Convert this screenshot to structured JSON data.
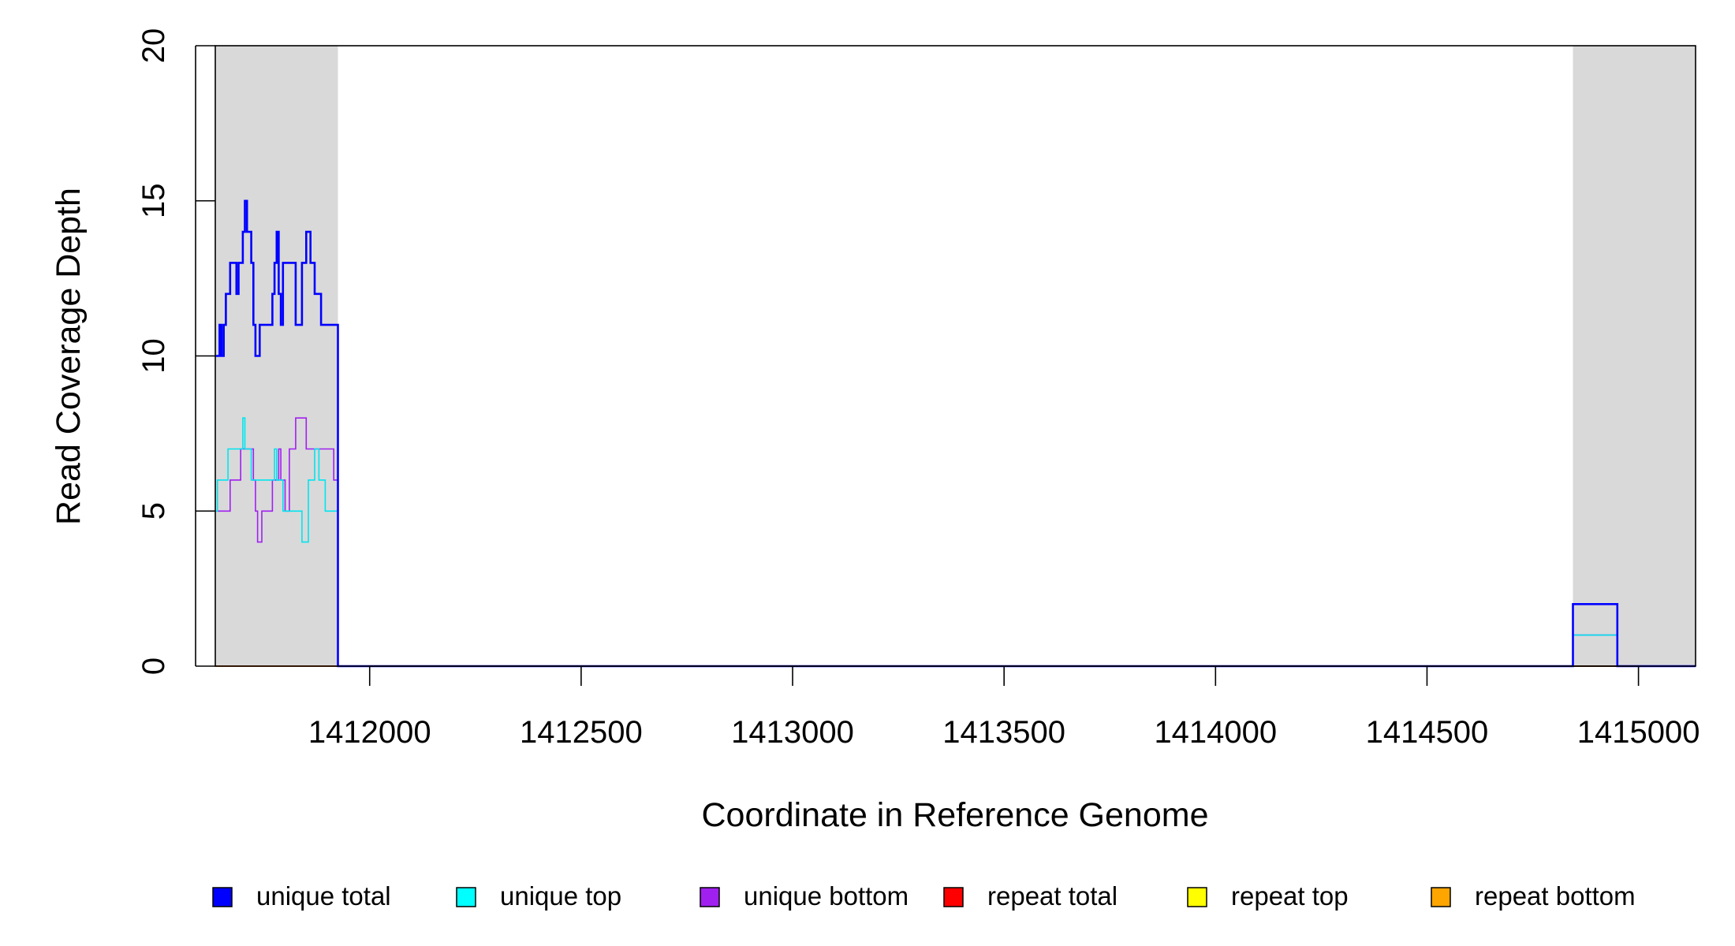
{
  "chart_data": {
    "type": "line",
    "title": "",
    "xlabel": "Coordinate in Reference Genome",
    "ylabel": "Read Coverage Depth",
    "xlim": [
      1411635,
      1415135
    ],
    "ylim": [
      0,
      20
    ],
    "x_ticks": [
      1412000,
      1412500,
      1413000,
      1413500,
      1414000,
      1414500,
      1415000
    ],
    "x_tick_labels": [
      "1412000",
      "1412500",
      "1413000",
      "1413500",
      "1414000",
      "1414500",
      "1415000"
    ],
    "y_ticks": [
      0,
      5,
      10,
      15,
      20
    ],
    "y_tick_labels": [
      "0",
      "5",
      "10",
      "15",
      "20"
    ],
    "shaded_regions": [
      {
        "start": 1411635,
        "end": 1411925,
        "color": "#d9d9d9"
      },
      {
        "start": 1414845,
        "end": 1415135,
        "color": "#d9d9d9"
      }
    ],
    "series": [
      {
        "name": "unique total",
        "color": "#0000ff",
        "x": [
          1411635,
          1411645,
          1411650,
          1411655,
          1411660,
          1411670,
          1411680,
          1411685,
          1411690,
          1411700,
          1411705,
          1411710,
          1411720,
          1411725,
          1411730,
          1411735,
          1411740,
          1411745,
          1411755,
          1411770,
          1411775,
          1411780,
          1411785,
          1411790,
          1411795,
          1411800,
          1411810,
          1411820,
          1411825,
          1411830,
          1411840,
          1411850,
          1411855,
          1411860,
          1411870,
          1411875,
          1411880,
          1411885,
          1411895,
          1411910,
          1411920,
          1411925,
          1414845,
          1414950,
          1415135
        ],
        "y": [
          10,
          11,
          10,
          11,
          12,
          13,
          13,
          12,
          13,
          14,
          15,
          14,
          13,
          11,
          10,
          10,
          11,
          11,
          11,
          12,
          13,
          14,
          12,
          11,
          13,
          13,
          13,
          13,
          11,
          11,
          13,
          14,
          14,
          13,
          12,
          12,
          12,
          11,
          11,
          11,
          11,
          0,
          2,
          0,
          0
        ]
      },
      {
        "name": "unique top",
        "color": "#00e5ee",
        "x": [
          1411635,
          1411640,
          1411655,
          1411665,
          1411690,
          1411700,
          1411705,
          1411720,
          1411735,
          1411745,
          1411755,
          1411765,
          1411775,
          1411780,
          1411785,
          1411795,
          1411805,
          1411820,
          1411825,
          1411840,
          1411850,
          1411855,
          1411860,
          1411870,
          1411880,
          1411895,
          1411925,
          1414845,
          1414950,
          1415135
        ],
        "y": [
          5,
          6,
          6,
          7,
          7,
          8,
          7,
          6,
          6,
          6,
          6,
          6,
          7,
          6,
          6,
          5,
          5,
          5,
          5,
          4,
          4,
          6,
          6,
          7,
          6,
          5,
          0,
          1,
          0,
          0
        ]
      },
      {
        "name": "unique bottom",
        "color": "#a020f0",
        "x": [
          1411635,
          1411660,
          1411670,
          1411690,
          1411695,
          1411720,
          1411725,
          1411730,
          1411735,
          1411745,
          1411755,
          1411765,
          1411770,
          1411780,
          1411785,
          1411790,
          1411795,
          1411800,
          1411810,
          1411825,
          1411850,
          1411870,
          1411895,
          1411915,
          1411925,
          1414845,
          1414950,
          1415135
        ],
        "y": [
          5,
          5,
          6,
          6,
          7,
          7,
          6,
          5,
          4,
          5,
          5,
          5,
          6,
          6,
          7,
          6,
          6,
          5,
          7,
          8,
          7,
          7,
          7,
          6,
          0,
          1,
          0,
          0
        ]
      },
      {
        "name": "repeat total",
        "color": "#ff0000",
        "x": [
          1411635,
          1415135
        ],
        "y": [
          0,
          0
        ]
      },
      {
        "name": "repeat top",
        "color": "#ffff00",
        "x": [
          1411635,
          1415135
        ],
        "y": [
          0,
          0
        ]
      },
      {
        "name": "repeat bottom",
        "color": "#ffa500",
        "x": [
          1411635,
          1411925,
          1414845,
          1414950
        ],
        "y": [
          0,
          0,
          0,
          0
        ]
      }
    ],
    "legend": {
      "placement": "bottom",
      "entries": [
        {
          "label": "unique total",
          "color": "#0000ff"
        },
        {
          "label": "unique top",
          "color": "#00ffff"
        },
        {
          "label": "unique bottom",
          "color": "#a020f0"
        },
        {
          "label": "repeat total",
          "color": "#ff0000"
        },
        {
          "label": "repeat top",
          "color": "#ffff00"
        },
        {
          "label": "repeat bottom",
          "color": "#ffa500"
        }
      ]
    }
  }
}
